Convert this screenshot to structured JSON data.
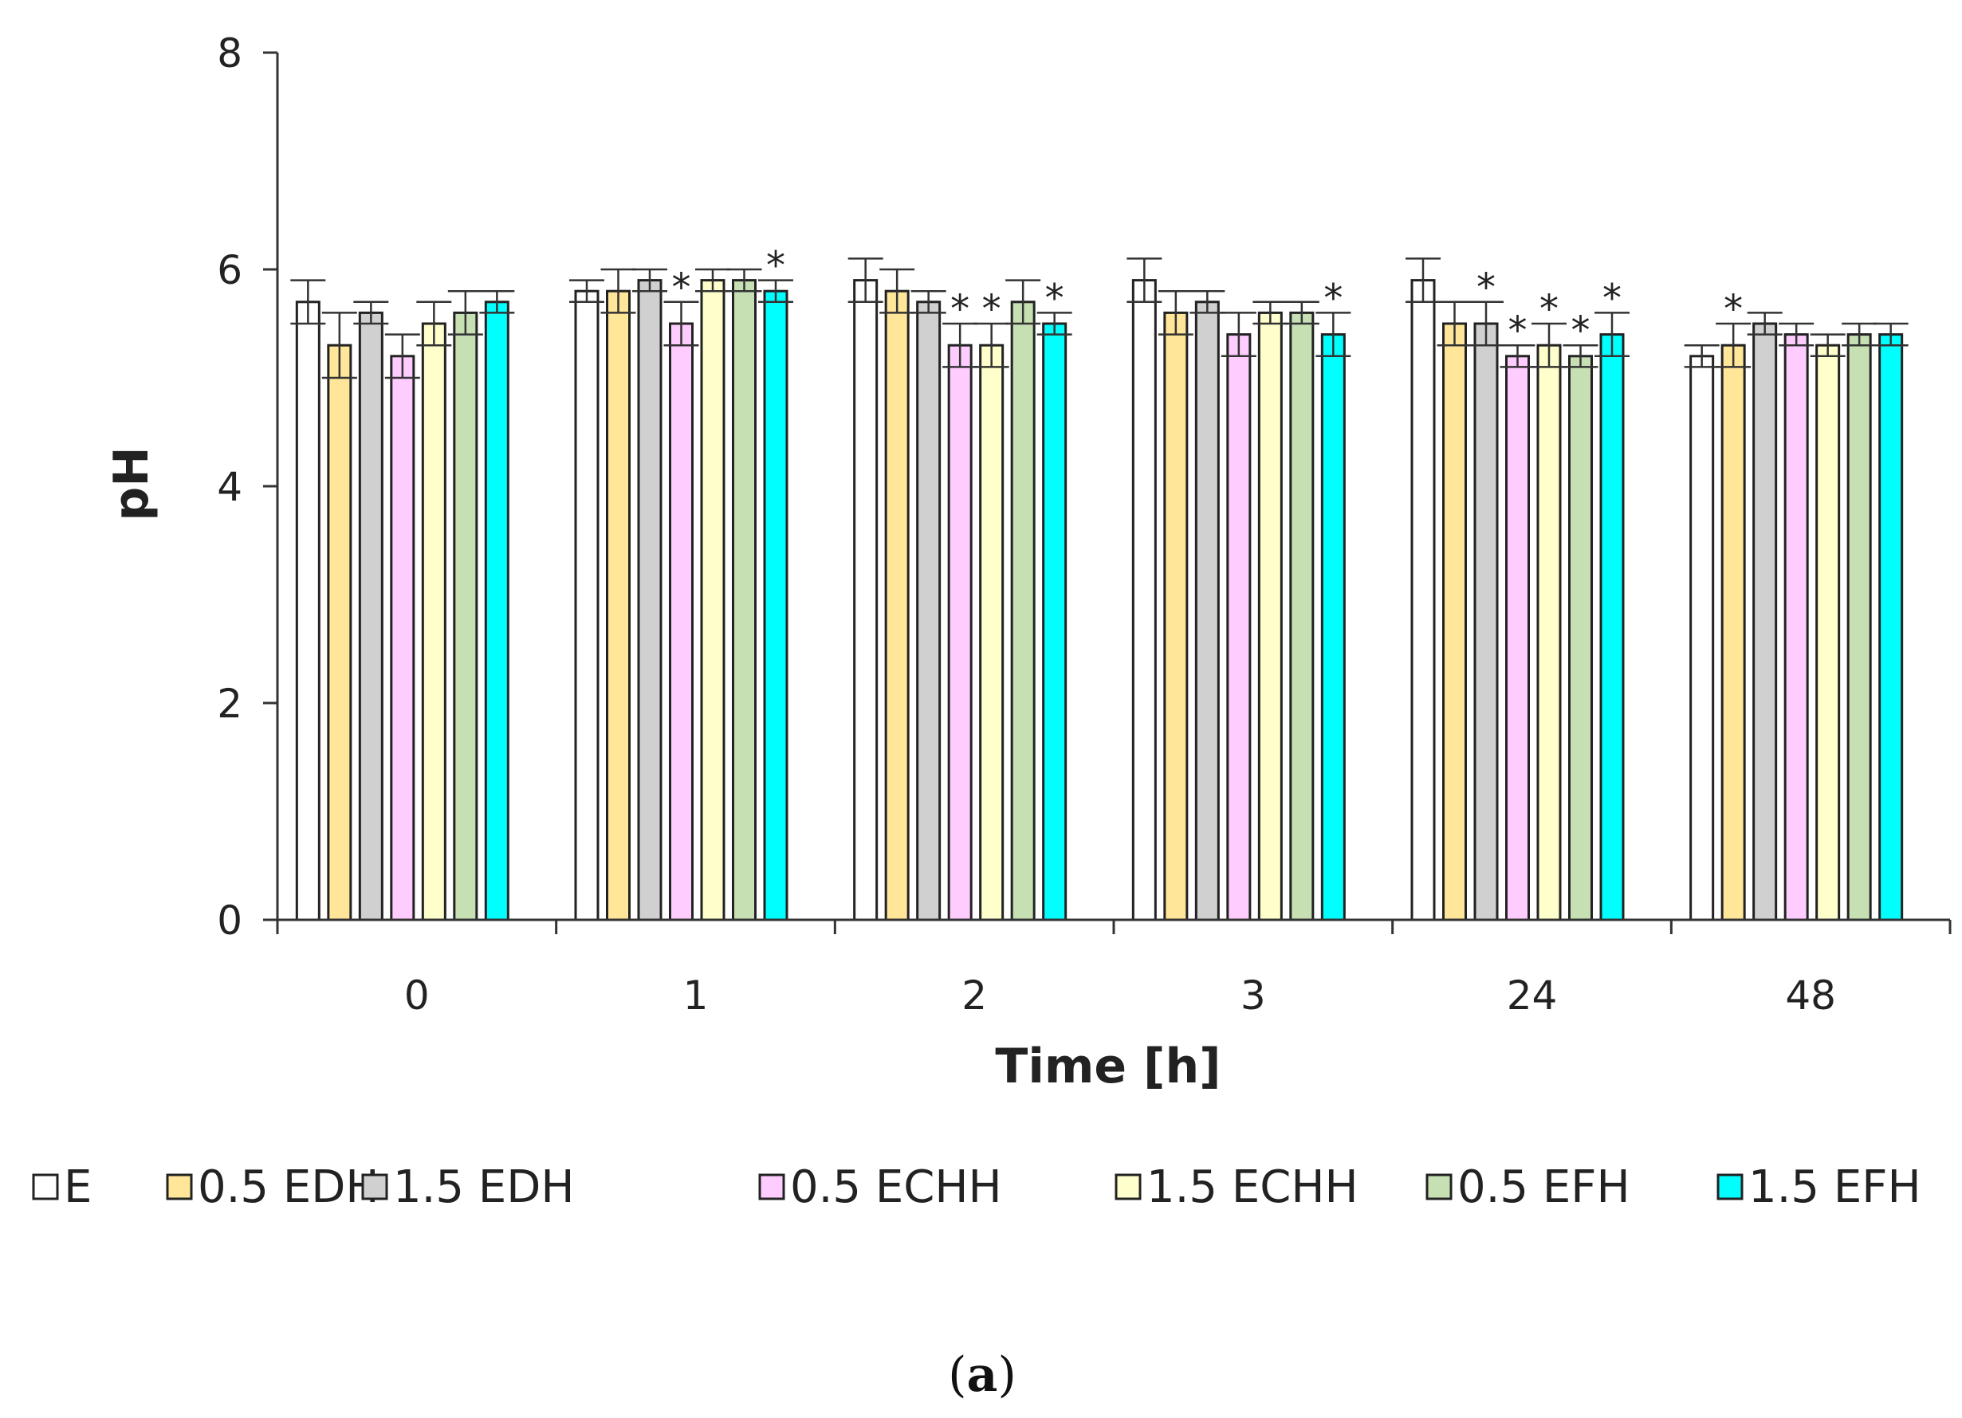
{
  "chart_data": {
    "type": "bar",
    "title": "",
    "xlabel": "Time [h]",
    "ylabel": "pH",
    "ylim": [
      0,
      8
    ],
    "yticks": [
      0,
      2,
      4,
      6,
      8
    ],
    "categories": [
      "0",
      "1",
      "2",
      "3",
      "24",
      "48"
    ],
    "series": [
      {
        "name": "E",
        "color": "#ffffff",
        "values": [
          5.7,
          5.8,
          5.9,
          5.9,
          5.9,
          5.2
        ],
        "errors": [
          0.2,
          0.1,
          0.2,
          0.2,
          0.2,
          0.1
        ],
        "significant": [
          false,
          false,
          false,
          false,
          false,
          false
        ]
      },
      {
        "name": "0.5 EDH",
        "color": "#ffe699",
        "values": [
          5.3,
          5.8,
          5.8,
          5.6,
          5.5,
          5.3
        ],
        "errors": [
          0.3,
          0.2,
          0.2,
          0.2,
          0.2,
          0.2
        ],
        "significant": [
          false,
          false,
          false,
          false,
          false,
          true
        ]
      },
      {
        "name": "1.5 EDH",
        "color": "#d0d0d0",
        "values": [
          5.6,
          5.9,
          5.7,
          5.7,
          5.5,
          5.5
        ],
        "errors": [
          0.1,
          0.1,
          0.1,
          0.1,
          0.2,
          0.1
        ],
        "significant": [
          false,
          false,
          false,
          false,
          true,
          false
        ]
      },
      {
        "name": "0.5 ECHH",
        "color": "#ffccff",
        "values": [
          5.2,
          5.5,
          5.3,
          5.4,
          5.2,
          5.4
        ],
        "errors": [
          0.2,
          0.2,
          0.2,
          0.2,
          0.1,
          0.1
        ],
        "significant": [
          false,
          true,
          true,
          false,
          true,
          false
        ]
      },
      {
        "name": "1.5 ECHH",
        "color": "#ffffcc",
        "values": [
          5.5,
          5.9,
          5.3,
          5.6,
          5.3,
          5.3
        ],
        "errors": [
          0.2,
          0.1,
          0.2,
          0.1,
          0.2,
          0.1
        ],
        "significant": [
          false,
          false,
          true,
          false,
          true,
          false
        ]
      },
      {
        "name": "0.5 EFH",
        "color": "#c6e0b4",
        "values": [
          5.6,
          5.9,
          5.7,
          5.6,
          5.2,
          5.4
        ],
        "errors": [
          0.2,
          0.1,
          0.2,
          0.1,
          0.1,
          0.1
        ],
        "significant": [
          false,
          false,
          false,
          false,
          true,
          false
        ]
      },
      {
        "name": "1.5 EFH",
        "color": "#00ffff",
        "values": [
          5.7,
          5.8,
          5.5,
          5.4,
          5.4,
          5.4
        ],
        "errors": [
          0.1,
          0.1,
          0.1,
          0.2,
          0.2,
          0.1
        ],
        "significant": [
          false,
          true,
          true,
          true,
          true,
          false
        ]
      }
    ],
    "significance_marker": "*",
    "grid": false,
    "legend_position": "bottom"
  },
  "panel_label": {
    "open": "(",
    "letter": "a",
    "close": ")"
  }
}
